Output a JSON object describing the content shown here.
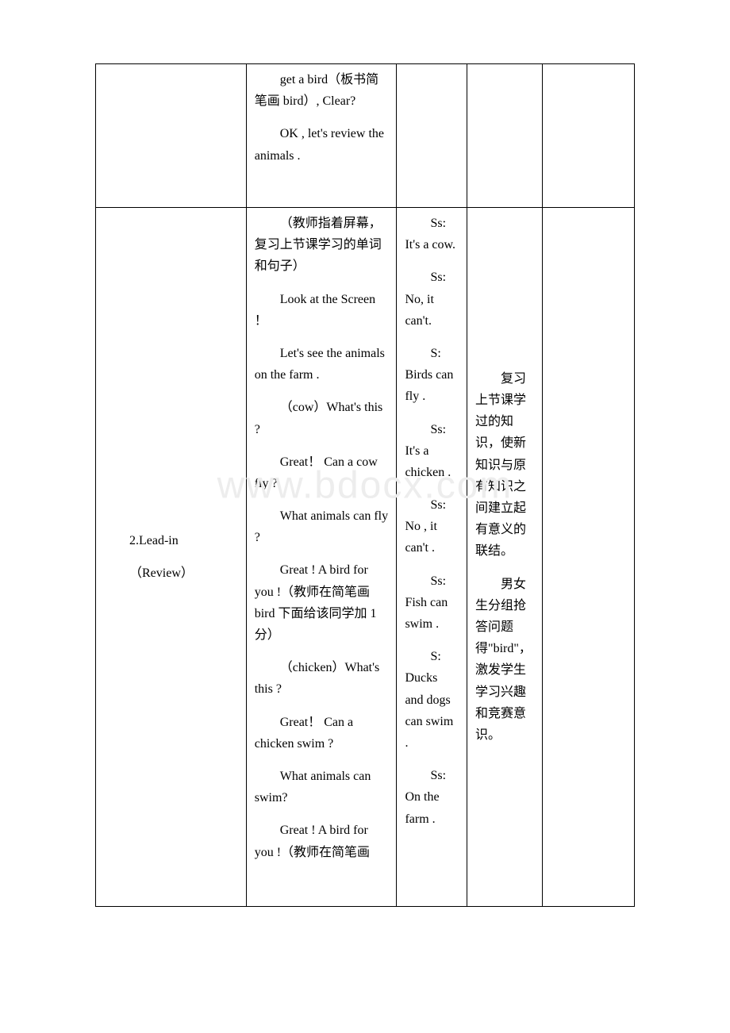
{
  "watermark": "www.bdocx.com",
  "table": {
    "row1": {
      "col1": "",
      "col2": [
        "get a bird（板书简笔画 bird）, Clear?",
        "OK , let's review the animals ."
      ],
      "col3": "",
      "col4": "",
      "col5": ""
    },
    "row2": {
      "col1": [
        "2.Lead-in",
        "（Review）"
      ],
      "col2": [
        "（教师指着屏幕，复习上节课学习的单词和句子）",
        "Look at the Screen ！",
        "Let's see the animals on the farm .",
        "（cow）What's this ?",
        "Great！ Can a cow fly ?",
        "What animals can fly ?",
        "Great ! A bird for you !（教师在简笔画 bird 下面给该同学加 1 分）",
        "（chicken）What's this ?",
        "Great！ Can a chicken swim ?",
        "What animals can swim?",
        "",
        "Great ! A bird for you !（教师在简笔画"
      ],
      "col3": [
        "Ss: It's a cow.",
        "Ss: No, it can't.",
        "S: Birds can fly .",
        "",
        "Ss: It's a chicken .",
        "Ss: No , it can't .",
        "Ss: Fish can swim .",
        "S: Ducks and dogs can swim .",
        "Ss: On the farm ."
      ],
      "col4": [
        "复习上节课学过的知识，使新知识与原有知识之间建立起有意义的联结。",
        "男女生分组抢答问题得\"bird\"，激发学生学习兴趣和竞赛意识。"
      ],
      "col5": ""
    }
  }
}
